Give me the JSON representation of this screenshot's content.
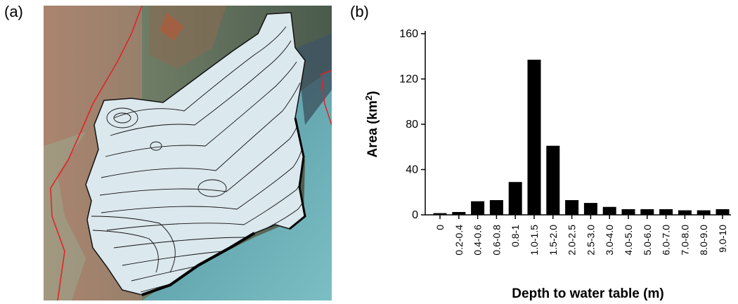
{
  "panel_a": {
    "label": "(a)"
  },
  "panel_b": {
    "label": "(b)"
  },
  "colors": {
    "bar": "#000000",
    "boundary": "#e0242a",
    "contour": "#111111",
    "basin": "#dbe8ee"
  },
  "chart_data": {
    "type": "bar",
    "xlabel": "Depth to water table (m)",
    "ylabel": "Area (km²)",
    "ylim": [
      0,
      160
    ],
    "yticks": [
      0,
      40,
      80,
      120,
      160
    ],
    "grid": false,
    "categories": [
      "0",
      "0.2-0.4",
      "0.4-0.6",
      "0.6-0.8",
      "0.8-1",
      "1.0-1.5",
      "1.5-2.0",
      "2.0-2.5",
      "2.5-3.0",
      "3.0-4.0",
      "4.0-5.0",
      "5.0-6.0",
      "6.0-7.0",
      "7.0-8.0",
      "8.0-9.0",
      "9.0-10"
    ],
    "values": [
      1.5,
      2.5,
      12,
      13,
      29,
      137,
      61,
      13,
      10.5,
      7,
      5,
      5,
      5,
      4,
      4,
      5
    ]
  }
}
